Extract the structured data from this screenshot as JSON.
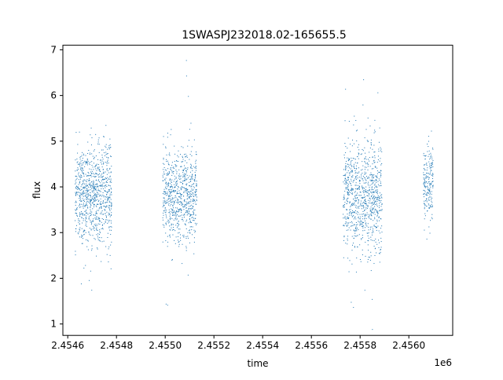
{
  "chart_data": {
    "type": "scatter",
    "title": "1SWASPJ232018.02-165655.5",
    "xlabel": "time",
    "ylabel": "flux",
    "x_offset_label": "1e6",
    "xlim": [
      2.45458,
      2.45618
    ],
    "ylim": [
      0.75,
      7.1
    ],
    "x_ticks": [
      2.4546,
      2.4548,
      2.455,
      2.4552,
      2.4554,
      2.4556,
      2.4558,
      2.456
    ],
    "x_tick_labels": [
      "2.4546",
      "2.4548",
      "2.4550",
      "2.4552",
      "2.4554",
      "2.4556",
      "2.4558",
      "2.4560"
    ],
    "y_ticks": [
      1,
      2,
      3,
      4,
      5,
      6,
      7
    ],
    "y_tick_labels": [
      "1",
      "2",
      "3",
      "4",
      "5",
      "6",
      "7"
    ],
    "grid": false,
    "marker_color": "#1f77b4",
    "series": [
      {
        "clusters": [
          {
            "x_range": [
              2.45463,
              2.45478
            ],
            "y_center": 3.8,
            "y_spread": 0.55,
            "count": 900
          },
          {
            "x_range": [
              2.45499,
              2.45513
            ],
            "y_center": 3.8,
            "y_spread": 0.5,
            "count": 750
          },
          {
            "x_range": [
              2.45573,
              2.45589
            ],
            "y_center": 3.8,
            "y_spread": 0.6,
            "count": 900
          },
          {
            "x_range": [
              2.45606,
              2.4561
            ],
            "y_center": 4.1,
            "y_spread": 0.4,
            "count": 200
          }
        ]
      }
    ]
  }
}
